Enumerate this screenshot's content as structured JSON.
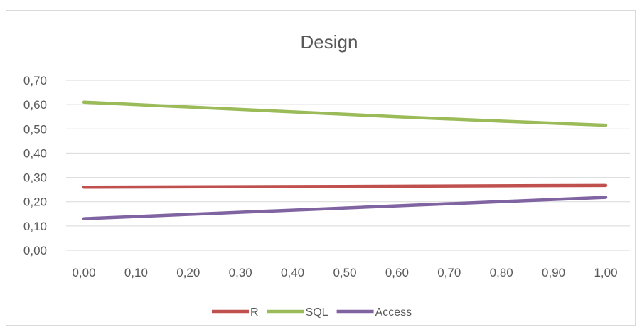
{
  "chart_data": {
    "type": "line",
    "title": "Design",
    "xlabel": "",
    "ylabel": "",
    "x": [
      0.0,
      1.0
    ],
    "x_tick_labels": [
      "0,00",
      "0,10",
      "0,20",
      "0,30",
      "0,40",
      "0,50",
      "0,60",
      "0,70",
      "0,80",
      "0,90",
      "1,00"
    ],
    "y_tick_labels": [
      "0,00",
      "0,10",
      "0,20",
      "0,30",
      "0,40",
      "0,50",
      "0,60",
      "0,70"
    ],
    "ylim": [
      0,
      0.7
    ],
    "xlim": [
      0,
      1
    ],
    "grid": true,
    "legend_position": "bottom",
    "series": [
      {
        "name": "R",
        "color": "#c0504d",
        "x": [
          0.0,
          0.5,
          1.0
        ],
        "values": [
          0.26,
          0.263,
          0.267
        ]
      },
      {
        "name": "SQL",
        "color": "#9bbb59",
        "x": [
          0.0,
          0.2,
          0.4,
          0.6,
          0.8,
          1.0
        ],
        "values": [
          0.61,
          0.59,
          0.57,
          0.55,
          0.532,
          0.515
        ]
      },
      {
        "name": "Access",
        "color": "#8064a2",
        "x": [
          0.0,
          0.25,
          0.5,
          0.75,
          1.0
        ],
        "values": [
          0.13,
          0.152,
          0.174,
          0.196,
          0.218
        ]
      }
    ]
  }
}
